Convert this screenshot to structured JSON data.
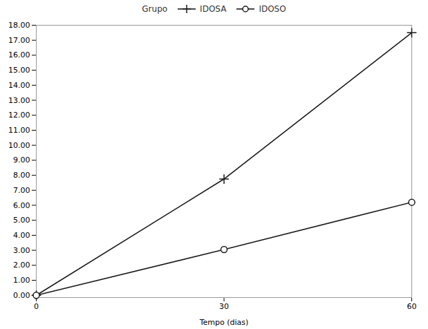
{
  "chart_data": {
    "type": "line",
    "x_label": "Tempo (dias)",
    "legend_title": "Grupo",
    "legend": "top",
    "grid": false,
    "series": [
      {
        "name": "IDOSA",
        "color": "#1a1a1a",
        "marker": "plus",
        "x": [
          0,
          30,
          60
        ],
        "values": [
          0.0,
          7.75,
          17.5
        ]
      },
      {
        "name": "IDOSO",
        "color": "#1a1a1a",
        "marker": "circle-open",
        "x": [
          0,
          30,
          60
        ],
        "values": [
          0.0,
          3.05,
          6.2
        ]
      }
    ],
    "xlim": [
      0,
      60
    ],
    "xticks": [
      0,
      30,
      60
    ],
    "ylim": [
      -0.15,
      18.0
    ],
    "yticks": [
      {
        "value": 0,
        "label": "0.00"
      },
      {
        "value": 1,
        "label": "1.00"
      },
      {
        "value": 2,
        "label": "2.00"
      },
      {
        "value": 3,
        "label": "3.00"
      },
      {
        "value": 4,
        "label": "4.00"
      },
      {
        "value": 5,
        "label": "5.00"
      },
      {
        "value": 6,
        "label": "6.00"
      },
      {
        "value": 7,
        "label": "7.00"
      },
      {
        "value": 8,
        "label": "8.00"
      },
      {
        "value": 9,
        "label": "9.00"
      },
      {
        "value": 10,
        "label": "10.00"
      },
      {
        "value": 11,
        "label": "11.00"
      },
      {
        "value": 12,
        "label": "12.00"
      },
      {
        "value": 13,
        "label": "13.00"
      },
      {
        "value": 14,
        "label": "14.00"
      },
      {
        "value": 15,
        "label": "15.00"
      },
      {
        "value": 16,
        "label": "16.00"
      },
      {
        "value": 17,
        "label": "17.00"
      },
      {
        "value": 18,
        "label": "18.00"
      }
    ]
  }
}
